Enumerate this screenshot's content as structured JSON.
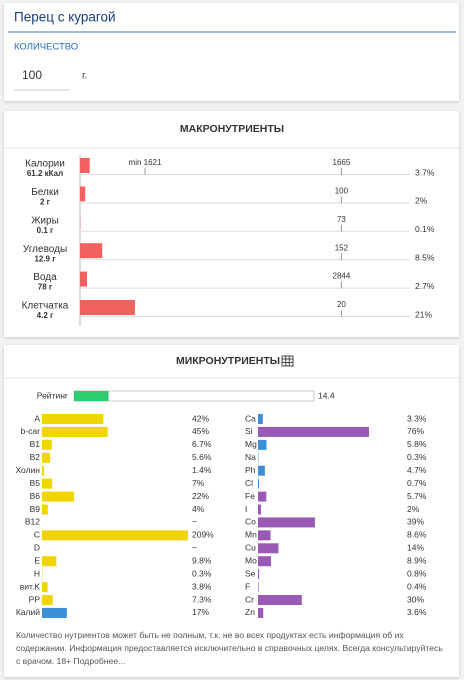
{
  "header": {
    "title": "Перец с курагой",
    "quantity_label": "КОЛИЧЕСТВО",
    "quantity": 100,
    "unit": "г."
  },
  "macronutrients": {
    "title": "МАКРОНУТРИЕНТЫ",
    "xlim": [
      0,
      127
    ],
    "bar_color": "#f26060",
    "rows": [
      {
        "name": "Калории",
        "amount": "61.2 кКал",
        "norm": 1665,
        "percent": 3.7,
        "percent_label": "3.7%",
        "min_label": "min 1621"
      },
      {
        "name": "Белки",
        "amount": "2 г",
        "norm": 100,
        "percent": 2,
        "percent_label": "2%"
      },
      {
        "name": "Жиры",
        "amount": "0.1 г",
        "norm": 73,
        "percent": 0.1,
        "percent_label": "0.1%"
      },
      {
        "name": "Углеводы",
        "amount": "12.9 г",
        "norm": 152,
        "percent": 8.5,
        "percent_label": "8.5%"
      },
      {
        "name": "Вода",
        "amount": "78 г",
        "norm": 2844,
        "percent": 2.7,
        "percent_label": "2.7%"
      },
      {
        "name": "Клетчатка",
        "amount": "4.2 г",
        "norm": 20,
        "percent": 21,
        "percent_label": "21%"
      }
    ]
  },
  "micronutrients": {
    "title": "МИКРОНУТРИЕНТЫ",
    "xlim": [
      0,
      100
    ],
    "rating": {
      "label": "Рейтинг",
      "value": 14.4,
      "xlim": [
        0,
        100
      ],
      "color": "#2ecc71"
    },
    "left": [
      {
        "name": "A",
        "percent": 42,
        "label": "42%",
        "color": "#f0d500"
      },
      {
        "name": "b-car",
        "percent": 45,
        "label": "45%",
        "color": "#f0d500"
      },
      {
        "name": "B1",
        "percent": 6.7,
        "label": "6.7%",
        "color": "#f0d500"
      },
      {
        "name": "B2",
        "percent": 5.6,
        "label": "5.6%",
        "color": "#f0d500"
      },
      {
        "name": "Холин",
        "percent": 1.4,
        "label": "1.4%",
        "color": "#f0d500"
      },
      {
        "name": "B5",
        "percent": 7,
        "label": "7%",
        "color": "#f0d500"
      },
      {
        "name": "B6",
        "percent": 22,
        "label": "22%",
        "color": "#f0d500"
      },
      {
        "name": "B9",
        "percent": 4,
        "label": "4%",
        "color": "#f0d500"
      },
      {
        "name": "B12",
        "percent": null,
        "label": "~",
        "color": "#f0d500"
      },
      {
        "name": "C",
        "percent": 209,
        "label": "209%",
        "color": "#f0d500"
      },
      {
        "name": "D",
        "percent": null,
        "label": "~",
        "color": "#f0d500"
      },
      {
        "name": "E",
        "percent": 9.8,
        "label": "9.8%",
        "color": "#f0d500"
      },
      {
        "name": "H",
        "percent": 0.3,
        "label": "0.3%",
        "color": "#f0d500"
      },
      {
        "name": "вит.K",
        "percent": 3.8,
        "label": "3.8%",
        "color": "#f0d500"
      },
      {
        "name": "PP",
        "percent": 7.3,
        "label": "7.3%",
        "color": "#f0d500"
      },
      {
        "name": "Калий",
        "percent": 17,
        "label": "17%",
        "color": "#3a8fd6"
      }
    ],
    "right": [
      {
        "name": "Ca",
        "percent": 3.3,
        "label": "3.3%",
        "color": "#3a8fd6"
      },
      {
        "name": "Si",
        "percent": 76,
        "label": "76%",
        "color": "#9b59b6"
      },
      {
        "name": "Mg",
        "percent": 5.8,
        "label": "5.8%",
        "color": "#3a8fd6"
      },
      {
        "name": "Na",
        "percent": 0.3,
        "label": "0.3%",
        "color": "#3a8fd6"
      },
      {
        "name": "Ph",
        "percent": 4.7,
        "label": "4.7%",
        "color": "#3a8fd6"
      },
      {
        "name": "Cl",
        "percent": 0.7,
        "label": "0.7%",
        "color": "#3a8fd6"
      },
      {
        "name": "Fe",
        "percent": 5.7,
        "label": "5.7%",
        "color": "#9b59b6"
      },
      {
        "name": "I",
        "percent": 2,
        "label": "2%",
        "color": "#9b59b6"
      },
      {
        "name": "Co",
        "percent": 39,
        "label": "39%",
        "color": "#9b59b6"
      },
      {
        "name": "Mn",
        "percent": 8.6,
        "label": "8.6%",
        "color": "#9b59b6"
      },
      {
        "name": "Cu",
        "percent": 14,
        "label": "14%",
        "color": "#9b59b6"
      },
      {
        "name": "Mo",
        "percent": 8.9,
        "label": "8.9%",
        "color": "#9b59b6"
      },
      {
        "name": "Se",
        "percent": 0.8,
        "label": "0.8%",
        "color": "#9b59b6"
      },
      {
        "name": "F",
        "percent": 0.4,
        "label": "0.4%",
        "color": "#9b59b6"
      },
      {
        "name": "Cr",
        "percent": 30,
        "label": "30%",
        "color": "#9b59b6"
      },
      {
        "name": "Zn",
        "percent": 3.6,
        "label": "3.6%",
        "color": "#9b59b6"
      }
    ]
  },
  "footer": {
    "text": "Количество нутриентов может быть не полным, т.к. не во всех продуктах есть информация об их содержании. Информация предоставляется исключительно в справочных целях. Всегда консультируйтесь с врачом. 18+",
    "link": "Подробнее..."
  }
}
